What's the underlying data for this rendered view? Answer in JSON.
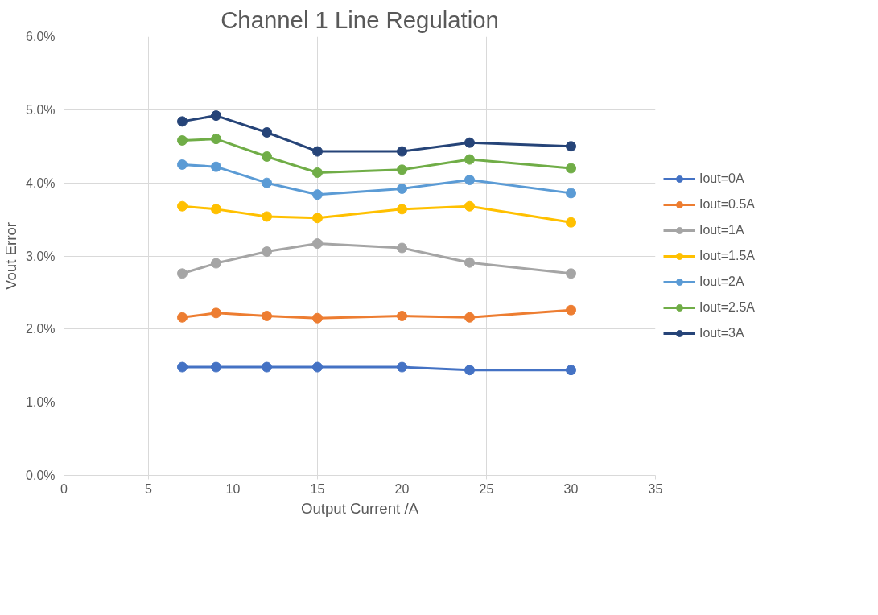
{
  "chart_data": {
    "type": "line",
    "title": "Channel 1 Line Regulation",
    "xlabel": "Output Current /A",
    "ylabel": "Vout Error",
    "x": [
      7,
      9,
      12,
      15,
      20,
      24,
      30
    ],
    "series": [
      {
        "name": "Iout=0A",
        "color": "#4472c4",
        "values": [
          1.48,
          1.48,
          1.48,
          1.48,
          1.48,
          1.44,
          1.44
        ]
      },
      {
        "name": "Iout=0.5A",
        "color": "#ed7d31",
        "values": [
          2.16,
          2.22,
          2.18,
          2.15,
          2.18,
          2.16,
          2.26
        ]
      },
      {
        "name": "Iout=1A",
        "color": "#a5a5a5",
        "values": [
          2.76,
          2.9,
          3.06,
          3.17,
          3.11,
          2.91,
          2.76
        ]
      },
      {
        "name": "Iout=1.5A",
        "color": "#ffc000",
        "values": [
          3.68,
          3.64,
          3.54,
          3.52,
          3.64,
          3.68,
          3.46
        ]
      },
      {
        "name": "Iout=2A",
        "color": "#5b9bd5",
        "values": [
          4.25,
          4.22,
          4.0,
          3.84,
          3.92,
          4.04,
          3.86
        ]
      },
      {
        "name": "Iout=2.5A",
        "color": "#70ad47",
        "values": [
          4.58,
          4.6,
          4.36,
          4.14,
          4.18,
          4.32,
          4.2
        ]
      },
      {
        "name": "Iout=3A",
        "color": "#264478",
        "values": [
          4.84,
          4.92,
          4.69,
          4.43,
          4.43,
          4.55,
          4.5
        ]
      }
    ],
    "xlim": [
      0,
      35
    ],
    "xticks": [
      0,
      5,
      10,
      15,
      20,
      25,
      30,
      35
    ],
    "ylim": [
      0,
      6
    ],
    "yticks": [
      {
        "value": 0,
        "label": "0.0%"
      },
      {
        "value": 1,
        "label": "1.0%"
      },
      {
        "value": 2,
        "label": "2.0%"
      },
      {
        "value": 3,
        "label": "3.0%"
      },
      {
        "value": 4,
        "label": "4.0%"
      },
      {
        "value": 5,
        "label": "5.0%"
      },
      {
        "value": 6,
        "label": "6.0%"
      }
    ],
    "grid": true,
    "legend": "right",
    "marker": "circle",
    "line_style": "solid"
  }
}
